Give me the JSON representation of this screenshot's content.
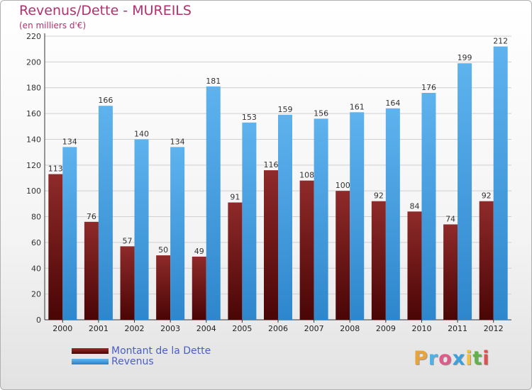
{
  "chart_data": {
    "type": "bar",
    "title": "Revenus/Dette - MUREILS",
    "subtitle": "(en milliers d'€)",
    "categories": [
      "2000",
      "2001",
      "2002",
      "2003",
      "2004",
      "2005",
      "2006",
      "2007",
      "2008",
      "2009",
      "2010",
      "2011",
      "2012"
    ],
    "series": [
      {
        "name": "Montant de la Dette",
        "color": "#7a1a1a",
        "values": [
          113,
          76,
          57,
          50,
          49,
          91,
          116,
          108,
          100,
          92,
          84,
          74,
          92
        ]
      },
      {
        "name": "Revenus",
        "color": "#4aa3e6",
        "values": [
          134,
          166,
          140,
          134,
          181,
          153,
          159,
          156,
          161,
          164,
          176,
          199,
          212
        ]
      }
    ],
    "ylim": [
      0,
      220
    ],
    "yticks": [
      0,
      20,
      40,
      60,
      80,
      100,
      120,
      140,
      160,
      180,
      200,
      220
    ],
    "grid": true,
    "legend_position": "bottom-left",
    "xlabel": "",
    "ylabel": ""
  },
  "branding": {
    "logo_letters": [
      "P",
      "r",
      "o",
      "x",
      "i",
      "t",
      "i"
    ],
    "logo_colors": [
      "#e8a33c",
      "#4bb3e8",
      "#e05a8a",
      "#3ca0dc",
      "#f0c040",
      "#60b24a",
      "#e05050"
    ]
  }
}
